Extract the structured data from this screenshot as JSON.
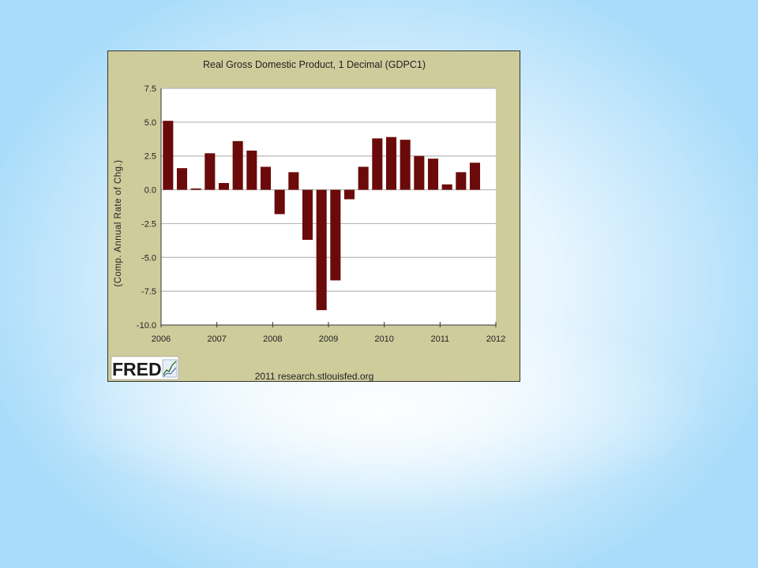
{
  "chart_data": {
    "type": "bar",
    "title": "Real Gross Domestic Product, 1 Decimal (GDPC1)",
    "xlabel": "",
    "ylabel": "(Comp. Annual Rate of Chg.)",
    "ylim": [
      -10.0,
      7.5
    ],
    "yticks": [
      "7.5",
      "5.0",
      "2.5",
      "0.0",
      "-2.5",
      "-5.0",
      "-7.5",
      "-10.0"
    ],
    "xlim": [
      2006,
      2012
    ],
    "xticks": [
      "2006",
      "2007",
      "2008",
      "2009",
      "2010",
      "2011",
      "2012"
    ],
    "grid": true,
    "legend": "none",
    "bar_color": "#6b0a0a",
    "plot_background": "#ffffff",
    "panel_background": "#cfcc9c",
    "categories": [
      "2006 Q1",
      "2006 Q2",
      "2006 Q3",
      "2006 Q4",
      "2007 Q1",
      "2007 Q2",
      "2007 Q3",
      "2007 Q4",
      "2008 Q1",
      "2008 Q2",
      "2008 Q3",
      "2008 Q4",
      "2009 Q1",
      "2009 Q2",
      "2009 Q3",
      "2009 Q4",
      "2010 Q1",
      "2010 Q2",
      "2010 Q3",
      "2010 Q4",
      "2011 Q1",
      "2011 Q2",
      "2011 Q3"
    ],
    "values": [
      5.1,
      1.6,
      0.1,
      2.7,
      0.5,
      3.6,
      2.9,
      1.7,
      -1.8,
      1.3,
      -3.7,
      -8.9,
      -6.7,
      -0.7,
      1.7,
      3.8,
      3.9,
      3.7,
      2.5,
      2.3,
      0.4,
      1.3,
      2.0
    ]
  },
  "branding": {
    "logo_text": "FRED",
    "source": "2011 research.stlouisfed.org"
  }
}
